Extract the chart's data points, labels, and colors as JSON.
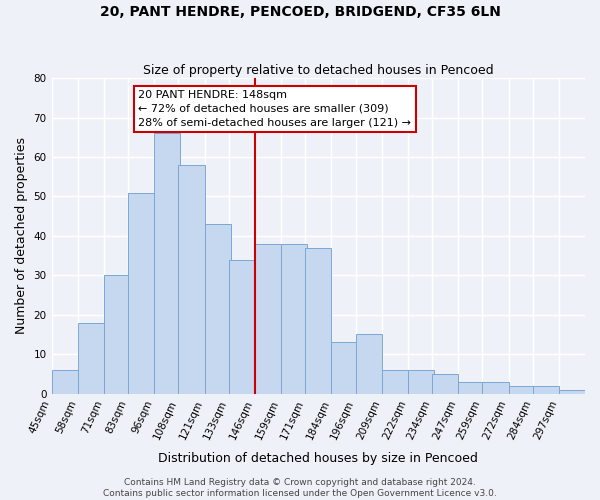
{
  "title": "20, PANT HENDRE, PENCOED, BRIDGEND, CF35 6LN",
  "subtitle": "Size of property relative to detached houses in Pencoed",
  "xlabel": "Distribution of detached houses by size in Pencoed",
  "ylabel": "Number of detached properties",
  "bin_labels": [
    "45sqm",
    "58sqm",
    "71sqm",
    "83sqm",
    "96sqm",
    "108sqm",
    "121sqm",
    "133sqm",
    "146sqm",
    "159sqm",
    "171sqm",
    "184sqm",
    "196sqm",
    "209sqm",
    "222sqm",
    "234sqm",
    "247sqm",
    "259sqm",
    "272sqm",
    "284sqm",
    "297sqm"
  ],
  "bin_edges": [
    45,
    58,
    71,
    83,
    96,
    108,
    121,
    133,
    146,
    159,
    171,
    184,
    196,
    209,
    222,
    234,
    247,
    259,
    272,
    284,
    297
  ],
  "bin_width": 13,
  "values": [
    6,
    18,
    30,
    51,
    66,
    58,
    43,
    34,
    38,
    38,
    37,
    13,
    15,
    6,
    6,
    5,
    3,
    3,
    2,
    2,
    1
  ],
  "bar_color": "#c5d8f0",
  "bar_edge_color": "#7ba7d4",
  "vline_x": 146,
  "vline_color": "#cc0000",
  "ylim": [
    0,
    80
  ],
  "yticks": [
    0,
    10,
    20,
    30,
    40,
    50,
    60,
    70,
    80
  ],
  "annotation_title": "20 PANT HENDRE: 148sqm",
  "annotation_line1": "← 72% of detached houses are smaller (309)",
  "annotation_line2": "28% of semi-detached houses are larger (121) →",
  "annotation_box_color": "#ffffff",
  "annotation_box_edge": "#cc0000",
  "footer_line1": "Contains HM Land Registry data © Crown copyright and database right 2024.",
  "footer_line2": "Contains public sector information licensed under the Open Government Licence v3.0.",
  "background_color": "#eef2f8",
  "grid_color": "#ffffff",
  "title_fontsize": 10,
  "subtitle_fontsize": 9,
  "axis_label_fontsize": 9,
  "tick_fontsize": 7.5,
  "footer_fontsize": 6.5,
  "annotation_fontsize": 8
}
